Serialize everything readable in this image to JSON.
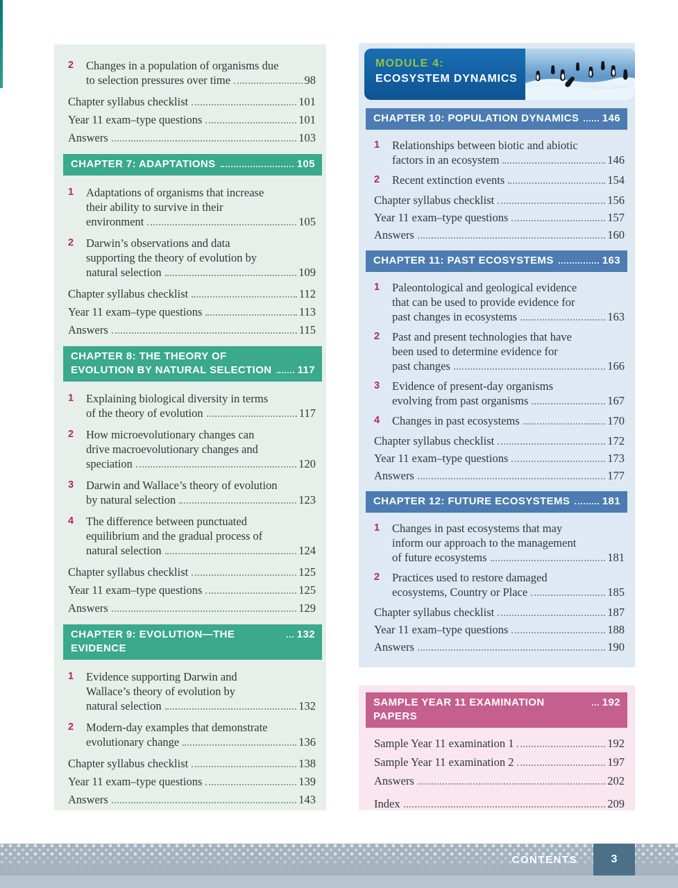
{
  "colors": {
    "teal_chapter_band": "#3aa98c",
    "blue_chapter_band": "#4c7cb1",
    "module_banner_blue": "#11609f",
    "module_kicker_green": "#8fc43f",
    "exam_band_pink": "#c55f8e",
    "item_number_magenta": "#b4246b",
    "left_panel_bg": "#e7efea",
    "right_panel_bg": "#dfe9f3",
    "exam_panel_bg": "#f9e6ee",
    "footer_bar": "#a3b4c0",
    "footer_page_box": "#4c7088"
  },
  "left_column": {
    "sections": [
      {
        "band": null,
        "entries": [
          {
            "num": "2",
            "lines": [
              "Changes in a population of organisms due",
              "to selection pressures over time"
            ],
            "page": "98"
          },
          {
            "lines": [
              "Chapter syllabus checklist"
            ],
            "page": "101"
          },
          {
            "lines": [
              "Year 11 exam–type questions"
            ],
            "page": "101"
          },
          {
            "lines": [
              "Answers"
            ],
            "page": "103"
          }
        ]
      },
      {
        "band": {
          "title_lines": [
            "CHAPTER 7: ADAPTATIONS"
          ],
          "page": "105"
        },
        "entries": [
          {
            "num": "1",
            "lines": [
              "Adaptations of organisms that increase",
              "their ability to survive in their",
              "environment"
            ],
            "page": "105"
          },
          {
            "num": "2",
            "lines": [
              "Darwin’s observations and data",
              "supporting the theory of evolution by",
              "natural selection"
            ],
            "page": "109"
          },
          {
            "lines": [
              "Chapter syllabus checklist"
            ],
            "page": "112"
          },
          {
            "lines": [
              "Year 11 exam–type questions"
            ],
            "page": "113"
          },
          {
            "lines": [
              "Answers"
            ],
            "page": "115"
          }
        ]
      },
      {
        "band": {
          "title_lines": [
            "CHAPTER 8: THE THEORY OF",
            "EVOLUTION BY NATURAL SELECTION"
          ],
          "page": "117"
        },
        "entries": [
          {
            "num": "1",
            "lines": [
              "Explaining biological diversity in terms",
              "of the theory of evolution"
            ],
            "page": "117"
          },
          {
            "num": "2",
            "lines": [
              "How microevolutionary changes can",
              "drive macroevolutionary changes and",
              "speciation"
            ],
            "page": "120"
          },
          {
            "num": "3",
            "lines": [
              "Darwin and Wallace’s theory of evolution",
              "by natural selection"
            ],
            "page": "123"
          },
          {
            "num": "4",
            "lines": [
              "The difference between punctuated",
              "equilibrium and the gradual process of",
              "natural selection"
            ],
            "page": "124"
          },
          {
            "lines": [
              "Chapter syllabus checklist"
            ],
            "page": "125"
          },
          {
            "lines": [
              "Year 11 exam–type questions"
            ],
            "page": "125"
          },
          {
            "lines": [
              "Answers"
            ],
            "page": "129"
          }
        ]
      },
      {
        "band": {
          "title_lines": [
            "CHAPTER 9: EVOLUTION—THE EVIDENCE"
          ],
          "page": "132"
        },
        "entries": [
          {
            "num": "1",
            "lines": [
              "Evidence supporting Darwin and",
              "Wallace’s theory of evolution by",
              "natural selection"
            ],
            "page": "132"
          },
          {
            "num": "2",
            "lines": [
              "Modern-day examples that demonstrate",
              "evolutionary change"
            ],
            "page": "136"
          },
          {
            "lines": [
              "Chapter syllabus checklist"
            ],
            "page": "138"
          },
          {
            "lines": [
              "Year 11 exam–type questions"
            ],
            "page": "139"
          },
          {
            "lines": [
              "Answers"
            ],
            "page": "143"
          }
        ]
      }
    ]
  },
  "right_column": {
    "module_banner": {
      "kicker": "MODULE 4:",
      "title": "ECOSYSTEM DYNAMICS",
      "image_alt": "penguins-on-snow-photo"
    },
    "sections": [
      {
        "band": {
          "title_lines": [
            "CHAPTER 10: POPULATION DYNAMICS"
          ],
          "page": "146"
        },
        "entries": [
          {
            "num": "1",
            "lines": [
              "Relationships between biotic and abiotic",
              "factors in an ecosystem"
            ],
            "page": "146"
          },
          {
            "num": "2",
            "lines": [
              "Recent extinction events"
            ],
            "page": "154"
          },
          {
            "lines": [
              "Chapter syllabus checklist"
            ],
            "page": "156"
          },
          {
            "lines": [
              "Year 11 exam–type questions"
            ],
            "page": "157"
          },
          {
            "lines": [
              "Answers"
            ],
            "page": "160"
          }
        ]
      },
      {
        "band": {
          "title_lines": [
            "CHAPTER 11: PAST ECOSYSTEMS"
          ],
          "page": "163"
        },
        "entries": [
          {
            "num": "1",
            "lines": [
              "Paleontological and geological evidence",
              "that can be used to provide evidence for",
              "past changes in ecosystems"
            ],
            "page": "163"
          },
          {
            "num": "2",
            "lines": [
              "Past and present technologies that have",
              "been used to determine evidence for",
              "past changes"
            ],
            "page": "166"
          },
          {
            "num": "3",
            "lines": [
              "Evidence of present-day organisms",
              "evolving from past organisms"
            ],
            "page": "167"
          },
          {
            "num": "4",
            "lines": [
              "Changes in past ecosystems"
            ],
            "page": "170"
          },
          {
            "lines": [
              "Chapter syllabus checklist"
            ],
            "page": "172"
          },
          {
            "lines": [
              "Year 11 exam–type questions"
            ],
            "page": "173"
          },
          {
            "lines": [
              "Answers"
            ],
            "page": "177"
          }
        ]
      },
      {
        "band": {
          "title_lines": [
            "CHAPTER 12: FUTURE ECOSYSTEMS"
          ],
          "page": "181"
        },
        "entries": [
          {
            "num": "1",
            "lines": [
              "Changes in past ecosystems that may",
              "inform our approach to the management",
              "of future ecosystems"
            ],
            "page": "181"
          },
          {
            "num": "2",
            "lines": [
              "Practices used to restore damaged",
              "ecosystems, Country or Place"
            ],
            "page": "185"
          },
          {
            "lines": [
              "Chapter syllabus checklist"
            ],
            "page": "187"
          },
          {
            "lines": [
              "Year 11 exam–type questions"
            ],
            "page": "188"
          },
          {
            "lines": [
              "Answers"
            ],
            "page": "190"
          }
        ]
      }
    ]
  },
  "exam_panel": {
    "band": {
      "title_lines": [
        "SAMPLE YEAR 11 EXAMINATION PAPERS"
      ],
      "page": "192"
    },
    "entries": [
      {
        "lines": [
          "Sample Year 11 examination 1"
        ],
        "page": "192"
      },
      {
        "lines": [
          "Sample Year 11 examination 2"
        ],
        "page": "197"
      },
      {
        "lines": [
          "Answers"
        ],
        "page": "202"
      },
      {
        "lines": [
          "Index"
        ],
        "page": "209",
        "gap_before": true
      }
    ]
  },
  "footer": {
    "label": "CONTENTS",
    "page_number": "3"
  }
}
